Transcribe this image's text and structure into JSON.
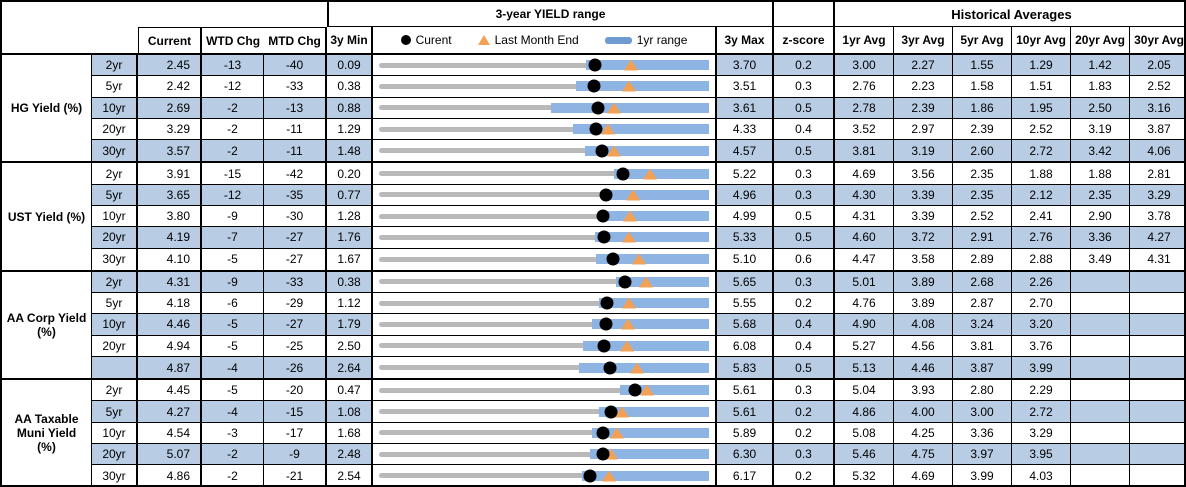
{
  "header": {
    "current": "Current",
    "wtd_chg": "WTD Chg",
    "mtd_chg": "MTD Chg",
    "min_3y": "3y Min",
    "max_3y": "3y Max",
    "z_score": "z-score",
    "range_title": "3-year YIELD range",
    "historical_title": "Historical Averages",
    "avg_cols": [
      "1yr Avg",
      "3yr Avg",
      "5yr Avg",
      "10yr Avg",
      "20yr Avg",
      "30yr Avg"
    ]
  },
  "legend": {
    "current": "Curent",
    "last_month_end": "Last Month End",
    "yr_range": "1yr range"
  },
  "colors": {
    "row_stripe": "#b8cce4",
    "range_bar": "#8eb4e3",
    "track_gray": "#b9b9b9",
    "dot_black": "#000000",
    "triangle_orange": "#f2a154",
    "legend_bar_blue": "#6f9bd1"
  },
  "chart_data": {
    "type": "table",
    "title": "3-year YIELD range",
    "row_chart": "dot-and-range strip per row: gray track spans 3y Min..3y Max, blue bar = 1yr range, black dot = Current, orange triangle = Last Month End",
    "columns": [
      "Current",
      "WTD Chg",
      "MTD Chg",
      "3y Min",
      "3y Max",
      "z-score",
      "1yr Avg",
      "3yr Avg",
      "5yr Avg",
      "10yr Avg",
      "20yr Avg",
      "30yr Avg"
    ],
    "groups": [
      {
        "label_lines": [
          "HG Yield (%)"
        ],
        "rows": [
          {
            "tenor": "2yr",
            "current": 2.45,
            "wtd": -13,
            "mtd": -40,
            "min": 0.09,
            "max": 3.7,
            "z": 0.2,
            "lme": 2.85,
            "yr1_low": 2.35,
            "yr1_high": 3.7,
            "avgs": [
              "3.00",
              "2.27",
              "1.55",
              "1.29",
              "1.42",
              "2.05"
            ]
          },
          {
            "tenor": "5yr",
            "current": 2.42,
            "wtd": -12,
            "mtd": -33,
            "min": 0.38,
            "max": 3.51,
            "z": 0.3,
            "lme": 2.75,
            "yr1_low": 2.25,
            "yr1_high": 3.51,
            "avgs": [
              "2.76",
              "2.23",
              "1.58",
              "1.51",
              "1.83",
              "2.52"
            ]
          },
          {
            "tenor": "10yr",
            "current": 2.69,
            "wtd": -2,
            "mtd": -13,
            "min": 0.88,
            "max": 3.61,
            "z": 0.5,
            "lme": 2.82,
            "yr1_low": 2.3,
            "yr1_high": 3.61,
            "avgs": [
              "2.78",
              "2.39",
              "1.86",
              "1.95",
              "2.50",
              "3.16"
            ]
          },
          {
            "tenor": "20yr",
            "current": 3.29,
            "wtd": -2,
            "mtd": -11,
            "min": 1.29,
            "max": 4.33,
            "z": 0.4,
            "lme": 3.4,
            "yr1_low": 3.08,
            "yr1_high": 4.33,
            "avgs": [
              "3.52",
              "2.97",
              "2.39",
              "2.52",
              "3.19",
              "3.87"
            ]
          },
          {
            "tenor": "30yr",
            "current": 3.57,
            "wtd": -2,
            "mtd": -11,
            "min": 1.48,
            "max": 4.57,
            "z": 0.5,
            "lme": 3.68,
            "yr1_low": 3.41,
            "yr1_high": 4.57,
            "avgs": [
              "3.81",
              "3.19",
              "2.60",
              "2.72",
              "3.42",
              "4.06"
            ]
          }
        ]
      },
      {
        "label_lines": [
          "UST Yield (%)"
        ],
        "rows": [
          {
            "tenor": "2yr",
            "current": 3.91,
            "wtd": -15,
            "mtd": -42,
            "min": 0.2,
            "max": 5.22,
            "z": 0.3,
            "lme": 4.33,
            "yr1_low": 3.78,
            "yr1_high": 5.22,
            "avgs": [
              "4.69",
              "3.56",
              "2.35",
              "1.88",
              "1.88",
              "2.81"
            ]
          },
          {
            "tenor": "5yr",
            "current": 3.65,
            "wtd": -12,
            "mtd": -35,
            "min": 0.77,
            "max": 4.96,
            "z": 0.3,
            "lme": 4.0,
            "yr1_low": 3.6,
            "yr1_high": 4.96,
            "avgs": [
              "4.30",
              "3.39",
              "2.35",
              "2.12",
              "2.35",
              "3.29"
            ]
          },
          {
            "tenor": "10yr",
            "current": 3.8,
            "wtd": -9,
            "mtd": -30,
            "min": 1.28,
            "max": 4.99,
            "z": 0.5,
            "lme": 4.1,
            "yr1_low": 3.77,
            "yr1_high": 4.99,
            "avgs": [
              "4.31",
              "3.39",
              "2.52",
              "2.41",
              "2.90",
              "3.78"
            ]
          },
          {
            "tenor": "20yr",
            "current": 4.19,
            "wtd": -7,
            "mtd": -27,
            "min": 1.76,
            "max": 5.33,
            "z": 0.5,
            "lme": 4.46,
            "yr1_low": 4.1,
            "yr1_high": 5.33,
            "avgs": [
              "4.60",
              "3.72",
              "2.91",
              "2.76",
              "3.36",
              "4.27"
            ]
          },
          {
            "tenor": "30yr",
            "current": 4.1,
            "wtd": -5,
            "mtd": -27,
            "min": 1.67,
            "max": 5.1,
            "z": 0.6,
            "lme": 4.37,
            "yr1_low": 3.93,
            "yr1_high": 5.1,
            "avgs": [
              "4.47",
              "3.58",
              "2.89",
              "2.88",
              "3.49",
              "4.31"
            ]
          }
        ]
      },
      {
        "label_lines": [
          "AA Corp Yield",
          "(%)"
        ],
        "rows": [
          {
            "tenor": "2yr",
            "current": 4.31,
            "wtd": -9,
            "mtd": -33,
            "min": 0.38,
            "max": 5.65,
            "z": 0.3,
            "lme": 4.64,
            "yr1_low": 4.16,
            "yr1_high": 5.65,
            "avgs": [
              "5.01",
              "3.89",
              "2.68",
              "2.26",
              "",
              ""
            ]
          },
          {
            "tenor": "5yr",
            "current": 4.18,
            "wtd": -6,
            "mtd": -29,
            "min": 1.12,
            "max": 5.55,
            "z": 0.2,
            "lme": 4.47,
            "yr1_low": 4.08,
            "yr1_high": 5.55,
            "avgs": [
              "4.76",
              "3.89",
              "2.87",
              "2.70",
              "",
              ""
            ]
          },
          {
            "tenor": "10yr",
            "current": 4.46,
            "wtd": -5,
            "mtd": -27,
            "min": 1.79,
            "max": 5.68,
            "z": 0.4,
            "lme": 4.73,
            "yr1_low": 4.3,
            "yr1_high": 5.68,
            "avgs": [
              "4.90",
              "4.08",
              "3.24",
              "3.20",
              "",
              ""
            ]
          },
          {
            "tenor": "20yr",
            "current": 4.94,
            "wtd": -5,
            "mtd": -25,
            "min": 2.5,
            "max": 6.08,
            "z": 0.4,
            "lme": 5.19,
            "yr1_low": 4.71,
            "yr1_high": 6.08,
            "avgs": [
              "5.27",
              "4.56",
              "3.81",
              "3.76",
              "",
              ""
            ]
          },
          {
            "tenor": "",
            "current": 4.87,
            "wtd": -4,
            "mtd": -26,
            "min": 2.64,
            "max": 5.83,
            "z": 0.5,
            "lme": 5.13,
            "yr1_low": 4.57,
            "yr1_high": 5.83,
            "avgs": [
              "5.13",
              "4.46",
              "3.87",
              "3.99",
              "",
              ""
            ]
          }
        ]
      },
      {
        "label_lines": [
          "AA Taxable",
          "Muni Yield",
          "(%)"
        ],
        "rows": [
          {
            "tenor": "2yr",
            "current": 4.45,
            "wtd": -5,
            "mtd": -20,
            "min": 0.47,
            "max": 5.61,
            "z": 0.3,
            "lme": 4.65,
            "yr1_low": 4.23,
            "yr1_high": 5.61,
            "avgs": [
              "5.04",
              "3.93",
              "2.80",
              "2.29",
              "",
              ""
            ]
          },
          {
            "tenor": "5yr",
            "current": 4.27,
            "wtd": -4,
            "mtd": -15,
            "min": 1.08,
            "max": 5.61,
            "z": 0.2,
            "lme": 4.42,
            "yr1_low": 4.1,
            "yr1_high": 5.61,
            "avgs": [
              "4.86",
              "4.00",
              "3.00",
              "2.72",
              "",
              ""
            ]
          },
          {
            "tenor": "10yr",
            "current": 4.54,
            "wtd": -3,
            "mtd": -17,
            "min": 1.68,
            "max": 5.89,
            "z": 0.2,
            "lme": 4.71,
            "yr1_low": 4.4,
            "yr1_high": 5.89,
            "avgs": [
              "5.08",
              "4.25",
              "3.36",
              "3.29",
              "",
              ""
            ]
          },
          {
            "tenor": "20yr",
            "current": 5.07,
            "wtd": -2,
            "mtd": -9,
            "min": 2.48,
            "max": 6.3,
            "z": 0.3,
            "lme": 5.16,
            "yr1_low": 4.92,
            "yr1_high": 6.3,
            "avgs": [
              "5.46",
              "4.75",
              "3.97",
              "3.95",
              "",
              ""
            ]
          },
          {
            "tenor": "30yr",
            "current": 4.86,
            "wtd": -2,
            "mtd": -21,
            "min": 2.54,
            "max": 6.17,
            "z": 0.2,
            "lme": 5.07,
            "yr1_low": 4.77,
            "yr1_high": 6.17,
            "avgs": [
              "5.32",
              "4.69",
              "3.99",
              "4.03",
              "",
              ""
            ]
          }
        ]
      }
    ]
  }
}
